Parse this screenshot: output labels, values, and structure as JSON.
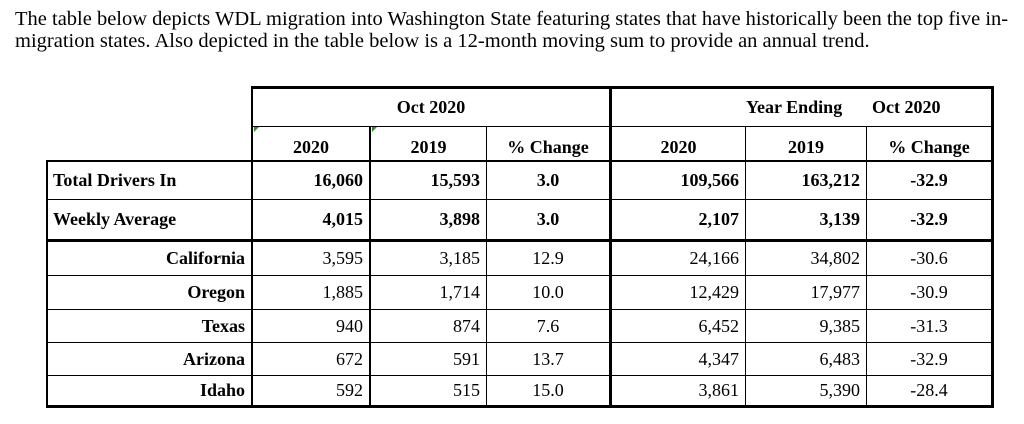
{
  "intro_text": "The table below depicts WDL migration into Washington State featuring states that have historically been the top five in-migration states. Also depicted in the table below is a 12-month moving sum to provide an annual trend.",
  "table": {
    "group_headers": {
      "month": "Oct 2020",
      "year_ending_label": "Year Ending",
      "year_ending_period": "Oct 2020"
    },
    "columns": [
      "2020",
      "2019",
      "% Change",
      "2020",
      "2019",
      "% Change"
    ],
    "rows": [
      {
        "label": "Total Drivers In",
        "values": [
          "16,060",
          "15,593",
          "3.0",
          "109,566",
          "163,212",
          "-32.9"
        ]
      },
      {
        "label": "Weekly Average",
        "values": [
          "4,015",
          "3,898",
          "3.0",
          "2,107",
          "3,139",
          "-32.9"
        ]
      },
      {
        "label": "California",
        "values": [
          "3,595",
          "3,185",
          "12.9",
          "24,166",
          "34,802",
          "-30.6"
        ]
      },
      {
        "label": "Oregon",
        "values": [
          "1,885",
          "1,714",
          "10.0",
          "12,429",
          "17,977",
          "-30.9"
        ]
      },
      {
        "label": "Texas",
        "values": [
          "940",
          "874",
          "7.6",
          "6,452",
          "9,385",
          "-31.3"
        ]
      },
      {
        "label": "Arizona",
        "values": [
          "672",
          "591",
          "13.7",
          "4,347",
          "6,483",
          "-32.9"
        ]
      },
      {
        "label": "Idaho",
        "values": [
          "592",
          "515",
          "15.0",
          "3,861",
          "5,390",
          "-28.4"
        ]
      }
    ]
  },
  "colors": {
    "text": "#000000",
    "border": "#000000",
    "background": "#ffffff",
    "cell_marker": "#3a8a3a"
  }
}
